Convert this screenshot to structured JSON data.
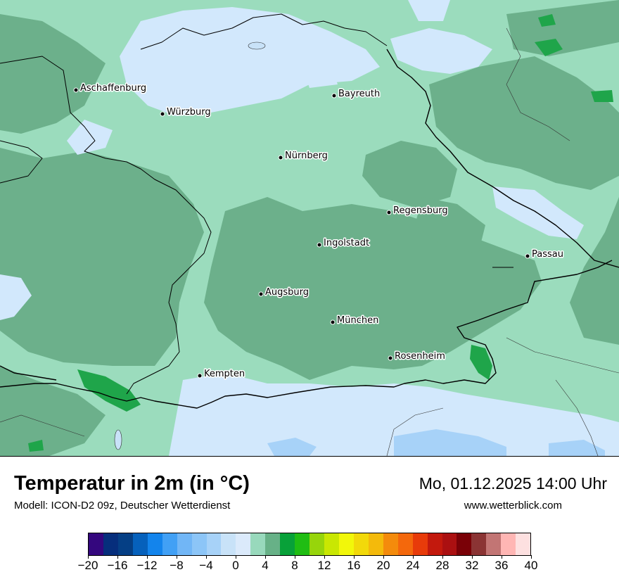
{
  "map": {
    "cities": [
      {
        "name": "Aschaffenburg"
      },
      {
        "name": "Würzburg"
      },
      {
        "name": "Bayreuth"
      },
      {
        "name": "Nürnberg"
      },
      {
        "name": "Regensburg"
      },
      {
        "name": "Ingolstadt"
      },
      {
        "name": "Passau"
      },
      {
        "name": "Augsburg"
      },
      {
        "name": "München"
      },
      {
        "name": "Rosenheim"
      },
      {
        "name": "Kempten"
      }
    ],
    "colors": {
      "base": "#9bdcbd",
      "mid": "#6cb08b",
      "light": "#d2e8fc",
      "bright": "#1fa54a",
      "water": "#c8e2f8"
    }
  },
  "footer": {
    "title": "Temperatur in 2m (in °C)",
    "subtitle": "Modell: ICON-D2 09z, Deutscher Wetterdienst",
    "datetime": "Mo, 01.12.2025 14:00 Uhr",
    "website": "www.wetterblick.com"
  },
  "legend": {
    "colors": [
      "#34077e",
      "#062e7c",
      "#053f85",
      "#0661bc",
      "#1384ec",
      "#41a0f5",
      "#71b6f6",
      "#8cc5f7",
      "#a7d2f8",
      "#c8e2f8",
      "#dbeafb",
      "#98d9bc",
      "#67b187",
      "#08a139",
      "#20bd13",
      "#97d50b",
      "#c9e702",
      "#f2f70a",
      "#f2d90a",
      "#f4ba0b",
      "#f48b0c",
      "#f4680c",
      "#e83b0a",
      "#c3190d",
      "#ab1011",
      "#7a0107",
      "#8b3434",
      "#c27574",
      "#ffb6b4",
      "#fde0e0"
    ],
    "ticks": [
      "−20",
      "−16",
      "−12",
      "−8",
      "−4",
      "0",
      "4",
      "8",
      "12",
      "16",
      "20",
      "24",
      "28",
      "32",
      "36",
      "40"
    ]
  }
}
